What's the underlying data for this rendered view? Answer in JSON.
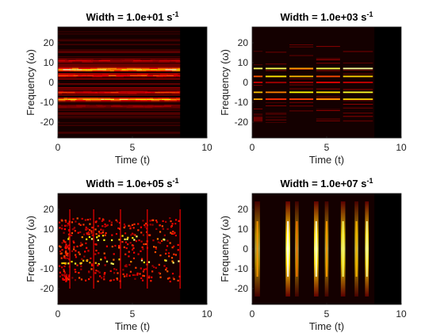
{
  "chart_data": [
    {
      "type": "heatmap",
      "title": "Width = 1.0e+01 s",
      "title_sup": "-1",
      "xlabel": "Time (t)",
      "ylabel": "Frequency (ω)",
      "xlim": [
        0,
        10
      ],
      "ylim": [
        -28,
        28
      ],
      "xticks": [
        0,
        5,
        10
      ],
      "yticks": [
        20,
        10,
        0,
        -10,
        -20
      ],
      "colormap": "hot",
      "signal_extent_t": [
        0,
        8.2
      ],
      "pattern": "narrow_window_horizontal_lines",
      "bands": [
        {
          "freq": 6.5,
          "intensity": 0.95
        },
        {
          "freq": -8.5,
          "intensity": 0.85
        },
        {
          "freq": 3.5,
          "intensity": 0.55
        },
        {
          "freq": -5,
          "intensity": 0.5
        },
        {
          "freq": 11,
          "intensity": 0.35
        },
        {
          "freq": -12,
          "intensity": 0.3
        }
      ]
    },
    {
      "type": "heatmap",
      "title": "Width = 1.0e+03 s",
      "title_sup": "-1",
      "xlabel": "Time (t)",
      "ylabel": "Frequency (ω)",
      "xlim": [
        0,
        10
      ],
      "ylim": [
        -28,
        28
      ],
      "xticks": [
        0,
        5,
        10
      ],
      "yticks": [
        20,
        10,
        0,
        -10,
        -20
      ],
      "colormap": "hot",
      "signal_extent_t": [
        0,
        8.2
      ],
      "pattern": "segmented_horizontal_lines",
      "segment_breaks_t": [
        0.8,
        2.4,
        4.2,
        6.0
      ],
      "bands": [
        {
          "freq": 7,
          "intensity": 0.9
        },
        {
          "freq": 3,
          "intensity": 0.75
        },
        {
          "freq": -5,
          "intensity": 0.8
        },
        {
          "freq": -8.5,
          "intensity": 0.7
        },
        {
          "freq": 0,
          "intensity": 0.35
        }
      ]
    },
    {
      "type": "heatmap",
      "title": "Width = 1.0e+05 s",
      "title_sup": "-1",
      "xlabel": "Time (t)",
      "ylabel": "Frequency (ω)",
      "xlim": [
        0,
        10
      ],
      "ylim": [
        -28,
        28
      ],
      "xticks": [
        0,
        5,
        10
      ],
      "yticks": [
        20,
        10,
        0,
        -10,
        -20
      ],
      "colormap": "hot",
      "signal_extent_t": [
        0,
        8.2
      ],
      "pattern": "speckled_segments",
      "segment_breaks_t": [
        0.8,
        2.4,
        4.2,
        6.0
      ],
      "bands": [
        {
          "freq": 6,
          "intensity": 0.9
        },
        {
          "freq": -6,
          "intensity": 0.9
        },
        {
          "freq": 2,
          "intensity": 0.5
        },
        {
          "freq": -2,
          "intensity": 0.5
        }
      ]
    },
    {
      "type": "heatmap",
      "title": "Width = 1.0e+07 s",
      "title_sup": "-1",
      "xlabel": "Time (t)",
      "ylabel": "Frequency (ω)",
      "xlim": [
        0,
        10
      ],
      "ylim": [
        -28,
        28
      ],
      "xticks": [
        0,
        5,
        10
      ],
      "yticks": [
        20,
        10,
        0,
        -10,
        -20
      ],
      "colormap": "hot",
      "signal_extent_t": [
        0,
        8.2
      ],
      "pattern": "vertical_bands",
      "columns": [
        {
          "t": 0.35,
          "intensity": 0.6,
          "width": 0.35
        },
        {
          "t": 2.4,
          "intensity": 1.0,
          "width": 0.3
        },
        {
          "t": 3.0,
          "intensity": 0.55,
          "width": 0.25
        },
        {
          "t": 4.3,
          "intensity": 0.95,
          "width": 0.3
        },
        {
          "t": 5.0,
          "intensity": 0.6,
          "width": 0.25
        },
        {
          "t": 6.1,
          "intensity": 0.85,
          "width": 0.3
        },
        {
          "t": 7.0,
          "intensity": 0.65,
          "width": 0.25
        },
        {
          "t": 7.7,
          "intensity": 0.9,
          "width": 0.25
        }
      ]
    }
  ]
}
